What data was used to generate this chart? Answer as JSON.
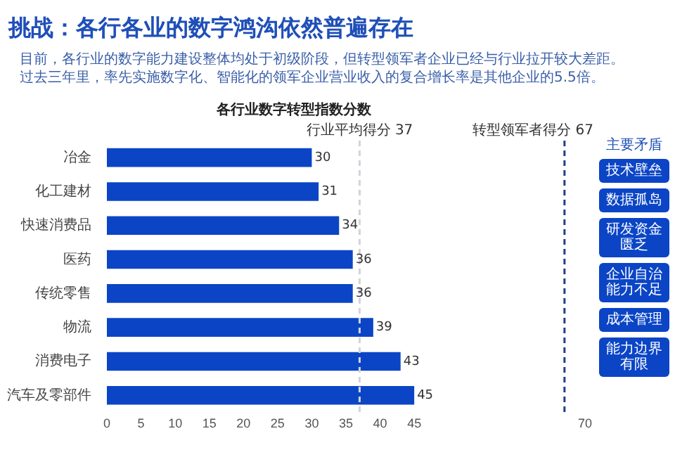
{
  "chart_data": {
    "type": "bar",
    "orientation": "horizontal",
    "title": "各行业数字转型指数分数",
    "subtitle": "挑战：各行各业的数字鸿沟依然普遍存在",
    "categories": [
      "冶金",
      "化工建材",
      "快速消费品",
      "医药",
      "传统零售",
      "物流",
      "消费电子",
      "汽车及零部件"
    ],
    "values": [
      30,
      31,
      34,
      36,
      36,
      39,
      43,
      45
    ],
    "color": "#0b45c6",
    "xlim": [
      0,
      70
    ],
    "xticks": [
      0,
      5,
      10,
      15,
      20,
      25,
      30,
      35,
      40,
      45,
      70
    ],
    "grid": false,
    "data_labels": true,
    "ref_lines": [
      {
        "axis": "x",
        "value": 37,
        "label": "行业平均得分 37",
        "color": "#d0d4da",
        "line_style": "dashed"
      },
      {
        "axis": "x",
        "value": 67,
        "label": "转型领军者得分 67",
        "color": "#1f3f8a",
        "line_style": "dashed"
      }
    ],
    "annotations": [
      "目前，各行业的数字能力建设整体均处于初级阶段，但转型领军者企业已经与行业拉开较大差距。",
      "过去三年里，率先实施数字化、智能化的领军企业营业收入的复合增长率是其他企业的5.5倍。",
      "主要矛盾",
      "技术壁垒",
      "数据孤岛",
      "研发资金匮乏",
      "企业自治能力不足",
      "成本管理",
      "能力边界有限"
    ]
  }
}
